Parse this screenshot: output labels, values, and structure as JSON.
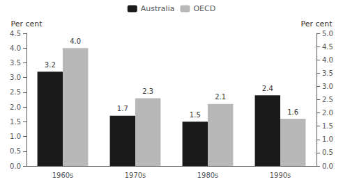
{
  "chart_data": {
    "type": "bar",
    "categories": [
      "1960s",
      "1970s",
      "1980s",
      "1990s"
    ],
    "series": [
      {
        "name": "Australia",
        "color": "#1a1a1a",
        "values": [
          3.2,
          1.7,
          1.5,
          2.4
        ],
        "value_labels": [
          "3.2",
          "1.7",
          "1.5",
          "2.4"
        ]
      },
      {
        "name": "OECD",
        "color": "#b8b8b8",
        "values": [
          4.0,
          2.3,
          2.1,
          1.6
        ],
        "value_labels": [
          "4.0",
          "2.3",
          "2.1",
          "1.6"
        ]
      }
    ],
    "ylabel": "Per cent",
    "y2label": "Per cent",
    "ylim": [
      0,
      4.5
    ],
    "yticks": [
      {
        "value": 0,
        "label": "0.0"
      },
      0.5,
      {
        "value": 1,
        "label": "1.0"
      },
      1.5,
      {
        "value": 2,
        "label": "2.0"
      },
      2.5,
      {
        "value": 3,
        "label": "3.0"
      },
      3.5,
      {
        "value": 4,
        "label": "4.0"
      },
      4.5
    ],
    "y2lim": [
      0,
      5.0
    ],
    "y2ticks": [
      {
        "value": 0,
        "label": "0.0"
      },
      0.5,
      {
        "value": 1,
        "label": "1.0"
      },
      1.5,
      {
        "value": 2,
        "label": "2.0"
      },
      2.5,
      {
        "value": 3,
        "label": "3.0"
      },
      3.5,
      {
        "value": 4,
        "label": "4.0"
      },
      4.5,
      {
        "value": 5,
        "label": "5.0"
      }
    ],
    "data_labels": true,
    "legend": "top",
    "grid": false
  }
}
